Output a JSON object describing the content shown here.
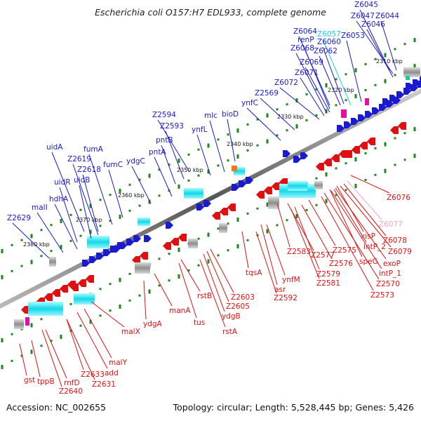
{
  "header": {
    "title": "Escherichia coli O157:H7 EDL933, complete genome"
  },
  "footer": {
    "accession": "Accession: NC_002655",
    "summary": "Topology: circular; Length: 5,528,445 bp; Genes: 5,426"
  },
  "colors": {
    "forward_label": "#1a1ad0",
    "reverse_label": "#e01010",
    "highlight_cyan": "#20c8f0",
    "highlight_pink": "#f4a6c8",
    "forward_gene": "#1a1ad0",
    "reverse_gene": "#e01010",
    "tick_green": "#1a8a1a"
  },
  "scale": [
    {
      "label": "2380 kbp"
    },
    {
      "label": "2370 kbp"
    },
    {
      "label": "2360 kbp"
    },
    {
      "label": "2350 kbp"
    },
    {
      "label": "2340 kbp"
    },
    {
      "label": "2330 kbp"
    },
    {
      "label": "2320 kbp"
    },
    {
      "label": "2310 kbp"
    }
  ],
  "forward_labels": [
    {
      "text": "Z6045"
    },
    {
      "text": "Z6047"
    },
    {
      "text": "Z6044"
    },
    {
      "text": "Z6046"
    },
    {
      "text": "Z6064"
    },
    {
      "text": "Z6057",
      "color": "#20c8f0"
    },
    {
      "text": "Z6053"
    },
    {
      "text": "renP"
    },
    {
      "text": "Z6060"
    },
    {
      "text": "Z6068"
    },
    {
      "text": "Z6062"
    },
    {
      "text": "Z6069"
    },
    {
      "text": "Z6071"
    },
    {
      "text": "Z6072"
    },
    {
      "text": "Z2569"
    },
    {
      "text": "ynfC"
    },
    {
      "text": "bioD"
    },
    {
      "text": "mlc"
    },
    {
      "text": "Z2594"
    },
    {
      "text": "ynfL"
    },
    {
      "text": "Z2593"
    },
    {
      "text": "pntB"
    },
    {
      "text": "pntA"
    },
    {
      "text": "uidA"
    },
    {
      "text": "fumA"
    },
    {
      "text": "Z2619"
    },
    {
      "text": "ydgC"
    },
    {
      "text": "fumC"
    },
    {
      "text": "Z2618"
    },
    {
      "text": "uidR"
    },
    {
      "text": "uidB"
    },
    {
      "text": "hdhA"
    },
    {
      "text": "malI"
    },
    {
      "text": "Z2629"
    }
  ],
  "reverse_labels": [
    {
      "text": "Z6076"
    },
    {
      "text": "Z6077",
      "color": "#f4a6c8"
    },
    {
      "text": "xisP"
    },
    {
      "text": "Z6078"
    },
    {
      "text": "intP_2"
    },
    {
      "text": "Z6079"
    },
    {
      "text": "speG"
    },
    {
      "text": "exoP"
    },
    {
      "text": "intP_1"
    },
    {
      "text": "Z2570"
    },
    {
      "text": "Z2573"
    },
    {
      "text": "Z2583"
    },
    {
      "text": "Z2577"
    },
    {
      "text": "Z2575"
    },
    {
      "text": "Z2576"
    },
    {
      "text": "Z2579"
    },
    {
      "text": "Z2581"
    },
    {
      "text": "ynfM"
    },
    {
      "text": "tqsA"
    },
    {
      "text": "asr"
    },
    {
      "text": "Z2592"
    },
    {
      "text": "Z2603"
    },
    {
      "text": "Z2605"
    },
    {
      "text": "ydgB"
    },
    {
      "text": "rstB"
    },
    {
      "text": "tus"
    },
    {
      "text": "rstA"
    },
    {
      "text": "manA"
    },
    {
      "text": "ydgA"
    },
    {
      "text": "malX"
    },
    {
      "text": "malY"
    },
    {
      "text": "add"
    },
    {
      "text": "Z2633"
    },
    {
      "text": "Z2631"
    },
    {
      "text": "rnfD"
    },
    {
      "text": "Z2640"
    },
    {
      "text": "gst"
    },
    {
      "text": "tppB"
    }
  ]
}
